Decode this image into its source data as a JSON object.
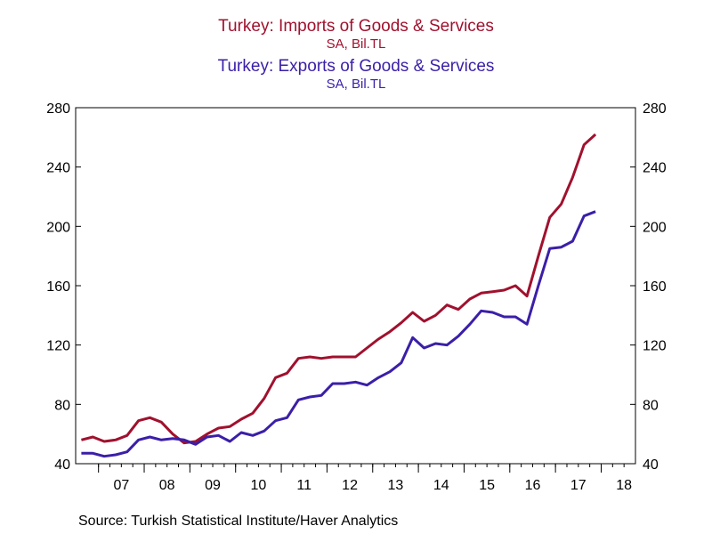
{
  "chart_data": {
    "type": "line",
    "series": [
      {
        "name": "Turkey: Imports of Goods & Services",
        "units": "SA, Bil.TL",
        "color": "#a0112e",
        "values": [
          56,
          58,
          55,
          56,
          59,
          69,
          71,
          68,
          60,
          54,
          55,
          60,
          64,
          65,
          70,
          74,
          84,
          98,
          101,
          111,
          112,
          111,
          112,
          112,
          112,
          118,
          124,
          129,
          135,
          142,
          136,
          140,
          147,
          144,
          151,
          155,
          156,
          157,
          160,
          153,
          180,
          206,
          215,
          233,
          255,
          262
        ]
      },
      {
        "name": "Turkey: Exports of Goods & Services",
        "units": "SA, Bil.TL",
        "color": "#3b1fa8",
        "values": [
          47,
          47,
          45,
          46,
          48,
          56,
          58,
          56,
          57,
          56,
          53,
          58,
          59,
          55,
          61,
          59,
          62,
          69,
          71,
          83,
          85,
          86,
          94,
          94,
          95,
          93,
          98,
          102,
          108,
          125,
          118,
          121,
          120,
          126,
          134,
          143,
          142,
          139,
          139,
          134,
          160,
          185,
          186,
          190,
          207,
          210
        ]
      }
    ],
    "x_start": "2006 Q3",
    "frequency": "quarterly",
    "x_tick_labels": [
      "07",
      "08",
      "09",
      "10",
      "11",
      "12",
      "13",
      "14",
      "15",
      "16",
      "17",
      "18"
    ],
    "y_ticks": [
      40,
      80,
      120,
      160,
      200,
      240,
      280
    ],
    "ylim": [
      40,
      280
    ],
    "y_axis_both_sides": true,
    "grid": false
  },
  "source": "Source:  Turkish Statistical Institute/Haver Analytics"
}
